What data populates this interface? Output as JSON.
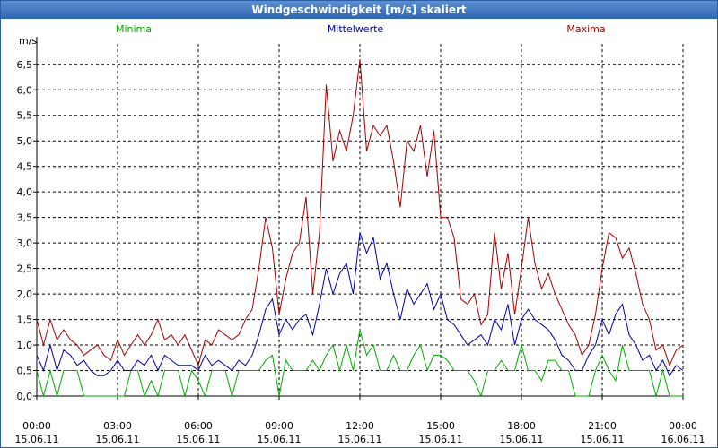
{
  "window": {
    "title": "Windgeschwindigkeit [m/s] skaliert"
  },
  "chart_data": {
    "type": "line",
    "title": "Windgeschwindigkeit [m/s] skaliert",
    "ylabel": "m/s",
    "xlabel": "",
    "ylim": [
      0,
      6.9
    ],
    "xlim_hours": [
      0,
      24
    ],
    "grid": true,
    "y_ticks": [
      "0,0",
      "0,5",
      "1,0",
      "1,5",
      "2,0",
      "2,5",
      "3,0",
      "3,5",
      "4,0",
      "4,5",
      "5,0",
      "5,5",
      "6,0",
      "6,5"
    ],
    "x_ticks": [
      {
        "time": "00:00",
        "date": "15.06.11"
      },
      {
        "time": "03:00",
        "date": "15.06.11"
      },
      {
        "time": "06:00",
        "date": "15.06.11"
      },
      {
        "time": "09:00",
        "date": "15.06.11"
      },
      {
        "time": "12:00",
        "date": "15.06.11"
      },
      {
        "time": "15:00",
        "date": "15.06.11"
      },
      {
        "time": "18:00",
        "date": "15.06.11"
      },
      {
        "time": "21:00",
        "date": "15.06.11"
      },
      {
        "time": "00:00",
        "date": "16.06.11"
      }
    ],
    "legend": [
      "Minima",
      "Mittelwerte",
      "Maxima"
    ],
    "colors": {
      "Minima": "#00aa00",
      "Mittelwerte": "#0000a0",
      "Maxima": "#a00000",
      "axis": "#000000"
    },
    "series": [
      {
        "name": "Minima",
        "color": "#00aa00",
        "points": [
          [
            0,
            0.5
          ],
          [
            0.25,
            0
          ],
          [
            0.5,
            0.5
          ],
          [
            0.75,
            0
          ],
          [
            1,
            0.5
          ],
          [
            1.25,
            0.5
          ],
          [
            1.5,
            0.5
          ],
          [
            1.75,
            0
          ],
          [
            2,
            0
          ],
          [
            2.25,
            0
          ],
          [
            2.5,
            0
          ],
          [
            2.75,
            0
          ],
          [
            3,
            0
          ],
          [
            3.25,
            0
          ],
          [
            3.5,
            0.5
          ],
          [
            3.75,
            0.5
          ],
          [
            4,
            0
          ],
          [
            4.25,
            0.3
          ],
          [
            4.5,
            0
          ],
          [
            4.75,
            0.5
          ],
          [
            5,
            0.5
          ],
          [
            5.25,
            0.5
          ],
          [
            5.5,
            0
          ],
          [
            5.75,
            0.5
          ],
          [
            6,
            0.3
          ],
          [
            6.25,
            0
          ],
          [
            6.5,
            0.5
          ],
          [
            6.75,
            0.5
          ],
          [
            7,
            0.5
          ],
          [
            7.25,
            0
          ],
          [
            7.5,
            0.5
          ],
          [
            7.75,
            0.5
          ],
          [
            8,
            0.5
          ],
          [
            8.25,
            0.5
          ],
          [
            8.5,
            0.7
          ],
          [
            8.75,
            0.8
          ],
          [
            9,
            0
          ],
          [
            9.25,
            0.7
          ],
          [
            9.5,
            0.5
          ],
          [
            9.75,
            0.5
          ],
          [
            10,
            0.5
          ],
          [
            10.25,
            0.7
          ],
          [
            10.5,
            0.5
          ],
          [
            10.75,
            0.8
          ],
          [
            11,
            1.0
          ],
          [
            11.25,
            0.5
          ],
          [
            11.5,
            1.0
          ],
          [
            11.75,
            0.5
          ],
          [
            12,
            1.3
          ],
          [
            12.25,
            0.8
          ],
          [
            12.5,
            1.0
          ],
          [
            12.75,
            0.5
          ],
          [
            13,
            0.5
          ],
          [
            13.25,
            0.8
          ],
          [
            13.5,
            0.5
          ],
          [
            13.75,
            0.5
          ],
          [
            14,
            0.8
          ],
          [
            14.25,
            1.0
          ],
          [
            14.5,
            0.5
          ],
          [
            14.75,
            0.8
          ],
          [
            15,
            0.8
          ],
          [
            15.25,
            0.7
          ],
          [
            15.5,
            0.5
          ],
          [
            15.75,
            0.5
          ],
          [
            16,
            0.5
          ],
          [
            16.25,
            0.3
          ],
          [
            16.5,
            0
          ],
          [
            16.75,
            0.5
          ],
          [
            17,
            0.5
          ],
          [
            17.25,
            0.7
          ],
          [
            17.5,
            0.5
          ],
          [
            17.75,
            0.5
          ],
          [
            18,
            1.0
          ],
          [
            18.25,
            0.5
          ],
          [
            18.5,
            0.5
          ],
          [
            18.75,
            0.3
          ],
          [
            19,
            0.7
          ],
          [
            19.25,
            0.7
          ],
          [
            19.5,
            0.5
          ],
          [
            19.75,
            0.5
          ],
          [
            20,
            0
          ],
          [
            20.25,
            0
          ],
          [
            20.5,
            0
          ],
          [
            20.75,
            0.5
          ],
          [
            21,
            0.8
          ],
          [
            21.25,
            0.5
          ],
          [
            21.5,
            0.3
          ],
          [
            21.75,
            1.0
          ],
          [
            22,
            0.5
          ],
          [
            22.25,
            0.5
          ],
          [
            22.5,
            0.5
          ],
          [
            22.75,
            0.5
          ],
          [
            23,
            0
          ],
          [
            23.25,
            0.5
          ],
          [
            23.5,
            0
          ],
          [
            23.75,
            0
          ],
          [
            24,
            0
          ]
        ]
      },
      {
        "name": "Mittelwerte",
        "color": "#0000a0",
        "points": [
          [
            0,
            0.8
          ],
          [
            0.25,
            0.5
          ],
          [
            0.5,
            1.0
          ],
          [
            0.75,
            0.5
          ],
          [
            1,
            0.9
          ],
          [
            1.25,
            0.8
          ],
          [
            1.5,
            0.6
          ],
          [
            1.75,
            0.7
          ],
          [
            2,
            0.5
          ],
          [
            2.25,
            0.4
          ],
          [
            2.5,
            0.4
          ],
          [
            2.75,
            0.5
          ],
          [
            3,
            0.7
          ],
          [
            3.25,
            0.5
          ],
          [
            3.5,
            0.5
          ],
          [
            3.75,
            0.7
          ],
          [
            4,
            0.6
          ],
          [
            4.25,
            0.8
          ],
          [
            4.5,
            0.5
          ],
          [
            4.75,
            0.8
          ],
          [
            5,
            0.7
          ],
          [
            5.25,
            0.6
          ],
          [
            5.5,
            0.6
          ],
          [
            5.75,
            0.6
          ],
          [
            6,
            0.5
          ],
          [
            6.25,
            0.8
          ],
          [
            6.5,
            0.6
          ],
          [
            6.75,
            0.7
          ],
          [
            7,
            0.6
          ],
          [
            7.25,
            0.5
          ],
          [
            7.5,
            0.7
          ],
          [
            7.75,
            0.6
          ],
          [
            8,
            0.8
          ],
          [
            8.25,
            1.2
          ],
          [
            8.5,
            1.7
          ],
          [
            8.75,
            1.9
          ],
          [
            9,
            1.2
          ],
          [
            9.25,
            1.5
          ],
          [
            9.5,
            1.3
          ],
          [
            9.75,
            1.5
          ],
          [
            10,
            1.6
          ],
          [
            10.25,
            1.2
          ],
          [
            10.5,
            1.8
          ],
          [
            10.75,
            2.5
          ],
          [
            11,
            2.0
          ],
          [
            11.25,
            2.4
          ],
          [
            11.5,
            2.6
          ],
          [
            11.75,
            2.0
          ],
          [
            12,
            3.2
          ],
          [
            12.25,
            2.8
          ],
          [
            12.5,
            3.1
          ],
          [
            12.75,
            2.3
          ],
          [
            13,
            2.6
          ],
          [
            13.25,
            2.0
          ],
          [
            13.5,
            1.5
          ],
          [
            13.75,
            2.1
          ],
          [
            14,
            1.8
          ],
          [
            14.25,
            2.0
          ],
          [
            14.5,
            2.2
          ],
          [
            14.75,
            1.7
          ],
          [
            15,
            2.0
          ],
          [
            15.25,
            1.5
          ],
          [
            15.5,
            1.4
          ],
          [
            15.75,
            1.2
          ],
          [
            16,
            1.0
          ],
          [
            16.25,
            1.1
          ],
          [
            16.5,
            1.2
          ],
          [
            16.75,
            1.0
          ],
          [
            17,
            1.5
          ],
          [
            17.25,
            1.3
          ],
          [
            17.5,
            1.8
          ],
          [
            17.75,
            1.0
          ],
          [
            18,
            1.5
          ],
          [
            18.25,
            1.7
          ],
          [
            18.5,
            1.5
          ],
          [
            18.75,
            1.4
          ],
          [
            19,
            1.3
          ],
          [
            19.25,
            1.1
          ],
          [
            19.5,
            0.8
          ],
          [
            19.75,
            0.7
          ],
          [
            20,
            0.5
          ],
          [
            20.25,
            0.5
          ],
          [
            20.5,
            0.8
          ],
          [
            20.75,
            1.0
          ],
          [
            21,
            1.5
          ],
          [
            21.25,
            1.2
          ],
          [
            21.5,
            1.6
          ],
          [
            21.75,
            1.8
          ],
          [
            22,
            1.2
          ],
          [
            22.25,
            1.0
          ],
          [
            22.5,
            0.7
          ],
          [
            22.75,
            0.8
          ],
          [
            23,
            0.5
          ],
          [
            23.25,
            0.7
          ],
          [
            23.5,
            0.4
          ],
          [
            23.75,
            0.6
          ],
          [
            24,
            0.5
          ]
        ]
      },
      {
        "name": "Maxima",
        "color": "#a00000",
        "points": [
          [
            0,
            1.5
          ],
          [
            0.25,
            1.0
          ],
          [
            0.5,
            1.5
          ],
          [
            0.75,
            1.1
          ],
          [
            1,
            1.3
          ],
          [
            1.25,
            1.1
          ],
          [
            1.5,
            1.0
          ],
          [
            1.75,
            0.8
          ],
          [
            2,
            0.9
          ],
          [
            2.25,
            1.0
          ],
          [
            2.5,
            0.8
          ],
          [
            2.75,
            0.7
          ],
          [
            3,
            1.1
          ],
          [
            3.25,
            0.8
          ],
          [
            3.5,
            1.0
          ],
          [
            3.75,
            1.2
          ],
          [
            4,
            1.0
          ],
          [
            4.25,
            1.2
          ],
          [
            4.5,
            1.5
          ],
          [
            4.75,
            1.1
          ],
          [
            5,
            1.2
          ],
          [
            5.25,
            1.0
          ],
          [
            5.5,
            1.2
          ],
          [
            5.75,
            0.9
          ],
          [
            6,
            0.6
          ],
          [
            6.25,
            1.1
          ],
          [
            6.5,
            1.0
          ],
          [
            6.75,
            1.3
          ],
          [
            7,
            1.2
          ],
          [
            7.25,
            1.1
          ],
          [
            7.5,
            1.2
          ],
          [
            7.75,
            1.5
          ],
          [
            8,
            1.7
          ],
          [
            8.25,
            2.5
          ],
          [
            8.5,
            3.5
          ],
          [
            8.75,
            2.9
          ],
          [
            9,
            1.6
          ],
          [
            9.25,
            2.3
          ],
          [
            9.5,
            2.8
          ],
          [
            9.75,
            3.0
          ],
          [
            10,
            3.9
          ],
          [
            10.25,
            2.0
          ],
          [
            10.5,
            3.2
          ],
          [
            10.75,
            6.1
          ],
          [
            11,
            4.6
          ],
          [
            11.25,
            5.2
          ],
          [
            11.5,
            4.8
          ],
          [
            11.75,
            5.5
          ],
          [
            12,
            6.6
          ],
          [
            12.25,
            4.8
          ],
          [
            12.5,
            5.3
          ],
          [
            12.75,
            5.1
          ],
          [
            13,
            5.3
          ],
          [
            13.25,
            4.6
          ],
          [
            13.5,
            3.7
          ],
          [
            13.75,
            5.0
          ],
          [
            14,
            4.8
          ],
          [
            14.25,
            5.3
          ],
          [
            14.5,
            4.3
          ],
          [
            14.75,
            5.2
          ],
          [
            15,
            3.5
          ],
          [
            15.25,
            3.5
          ],
          [
            15.5,
            3.1
          ],
          [
            15.75,
            1.9
          ],
          [
            16,
            1.8
          ],
          [
            16.25,
            2.0
          ],
          [
            16.5,
            1.4
          ],
          [
            16.75,
            1.6
          ],
          [
            17,
            3.2
          ],
          [
            17.25,
            2.1
          ],
          [
            17.5,
            2.8
          ],
          [
            17.75,
            1.6
          ],
          [
            18,
            2.5
          ],
          [
            18.25,
            3.5
          ],
          [
            18.5,
            2.6
          ],
          [
            18.75,
            2.1
          ],
          [
            19,
            2.4
          ],
          [
            19.25,
            2.0
          ],
          [
            19.5,
            1.7
          ],
          [
            19.75,
            1.4
          ],
          [
            20,
            1.2
          ],
          [
            20.25,
            0.8
          ],
          [
            20.5,
            1.0
          ],
          [
            20.75,
            1.6
          ],
          [
            21,
            2.5
          ],
          [
            21.25,
            3.2
          ],
          [
            21.5,
            3.1
          ],
          [
            21.75,
            2.7
          ],
          [
            22,
            2.9
          ],
          [
            22.25,
            2.4
          ],
          [
            22.5,
            1.8
          ],
          [
            22.75,
            1.5
          ],
          [
            23,
            0.9
          ],
          [
            23.25,
            1.0
          ],
          [
            23.5,
            0.6
          ],
          [
            23.75,
            0.9
          ],
          [
            24,
            1.0
          ]
        ]
      }
    ]
  }
}
